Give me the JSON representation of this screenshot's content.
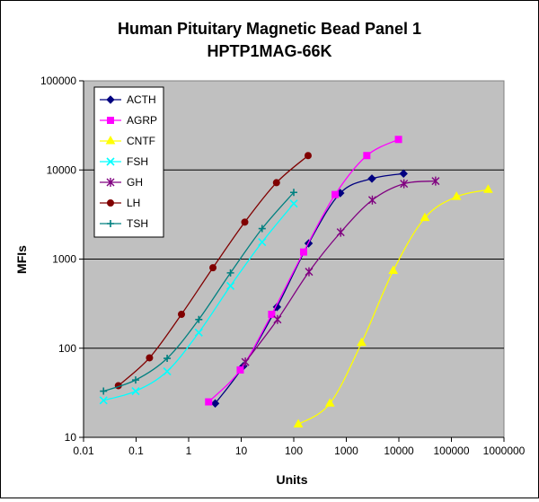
{
  "chart_data": {
    "type": "scatter",
    "title": [
      "Human Pituitary Magnetic Bead Panel 1",
      "HPTP1MAG-66K"
    ],
    "xlabel": "Units",
    "ylabel": "MFIs",
    "xscale": "log",
    "yscale": "log",
    "xlim": [
      0.01,
      1000000
    ],
    "ylim": [
      10,
      100000
    ],
    "x_ticks": [
      "0.01",
      "0.1",
      "1",
      "10",
      "100",
      "1000",
      "10000",
      "100000",
      "1000000"
    ],
    "y_ticks": [
      "10",
      "100",
      "1000",
      "10000",
      "100000"
    ],
    "plot_background": "#c0c0c0",
    "grid": "horizontal",
    "legend_position": "top-left",
    "series": [
      {
        "name": "ACTH",
        "color": "#000080",
        "marker": "diamond",
        "x": [
          3.2,
          11,
          48,
          192,
          768,
          3072,
          12288
        ],
        "y": [
          24,
          63,
          290,
          1500,
          5500,
          8000,
          9100
        ]
      },
      {
        "name": "AGRP",
        "color": "#ff00ff",
        "marker": "square",
        "x": [
          2.4,
          9.6,
          38,
          154,
          614,
          2458,
          9830
        ],
        "y": [
          25,
          57,
          240,
          1200,
          5300,
          14500,
          22000
        ]
      },
      {
        "name": "CNTF",
        "color": "#ffff00",
        "marker": "triangle",
        "x": [
          122,
          488,
          1953,
          7813,
          31250,
          125000,
          500000
        ],
        "y": [
          14,
          24,
          115,
          740,
          2900,
          5000,
          6000
        ]
      },
      {
        "name": "FSH",
        "color": "#00ffff",
        "marker": "x",
        "x": [
          0.024,
          0.098,
          0.39,
          1.56,
          6.25,
          25,
          100
        ],
        "y": [
          26,
          33,
          55,
          150,
          500,
          1550,
          4200
        ]
      },
      {
        "name": "GH",
        "color": "#800080",
        "marker": "star",
        "x": [
          12,
          49,
          195,
          781,
          3125,
          12500,
          50000
        ],
        "y": [
          70,
          210,
          720,
          2000,
          4600,
          7000,
          7500
        ]
      },
      {
        "name": "LH",
        "color": "#800000",
        "marker": "circle",
        "x": [
          0.046,
          0.18,
          0.73,
          2.9,
          11.7,
          46.9,
          187.5
        ],
        "y": [
          38,
          78,
          240,
          800,
          2600,
          7200,
          14500
        ]
      },
      {
        "name": "TSH",
        "color": "#008080",
        "marker": "plus",
        "x": [
          0.024,
          0.098,
          0.39,
          1.56,
          6.25,
          25,
          100
        ],
        "y": [
          33,
          44,
          77,
          210,
          700,
          2200,
          5600
        ]
      }
    ]
  }
}
